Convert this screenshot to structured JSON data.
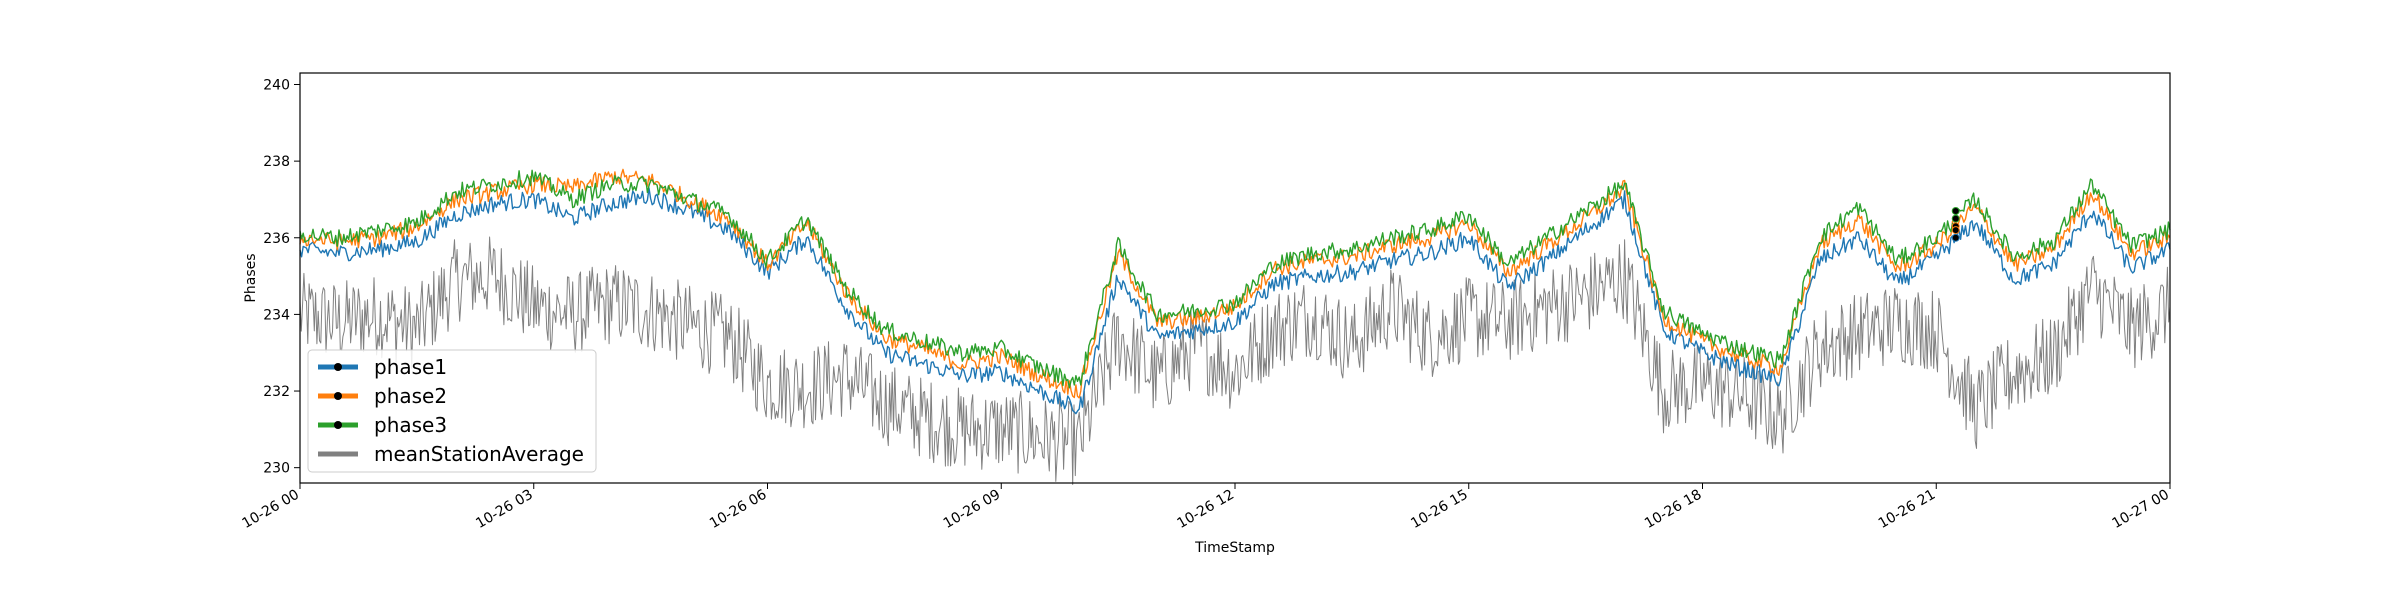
{
  "chart_data": {
    "type": "line",
    "title": "",
    "xlabel": "TimeStamp",
    "ylabel": "Phases",
    "x_ticks": [
      {
        "x": "2023-10-26T00:00",
        "label": "10-26 00"
      },
      {
        "x": "2023-10-26T03:00",
        "label": "10-26 03"
      },
      {
        "x": "2023-10-26T06:00",
        "label": "10-26 06"
      },
      {
        "x": "2023-10-26T09:00",
        "label": "10-26 09"
      },
      {
        "x": "2023-10-26T12:00",
        "label": "10-26 12"
      },
      {
        "x": "2023-10-26T15:00",
        "label": "10-26 15"
      },
      {
        "x": "2023-10-26T18:00",
        "label": "10-26 18"
      },
      {
        "x": "2023-10-26T21:00",
        "label": "10-26 21"
      },
      {
        "x": "2023-10-27T00:00",
        "label": "10-27 00"
      }
    ],
    "xlim": [
      "2023-10-26T00:00",
      "2023-10-27T00:00"
    ],
    "y_ticks": [
      230,
      232,
      234,
      236,
      238,
      240
    ],
    "ylim": [
      229.6,
      240.3
    ],
    "grid": false,
    "legend_position": "lower-left",
    "x": [
      "2023-10-26T00:00",
      "2023-10-26T00:30",
      "2023-10-26T01:00",
      "2023-10-26T01:30",
      "2023-10-26T02:00",
      "2023-10-26T02:30",
      "2023-10-26T03:00",
      "2023-10-26T03:30",
      "2023-10-26T04:00",
      "2023-10-26T04:30",
      "2023-10-26T05:00",
      "2023-10-26T05:30",
      "2023-10-26T06:00",
      "2023-10-26T06:30",
      "2023-10-26T07:00",
      "2023-10-26T07:30",
      "2023-10-26T08:00",
      "2023-10-26T08:30",
      "2023-10-26T09:00",
      "2023-10-26T09:30",
      "2023-10-26T10:00",
      "2023-10-26T10:30",
      "2023-10-26T11:00",
      "2023-10-26T11:30",
      "2023-10-26T12:00",
      "2023-10-26T12:30",
      "2023-10-26T13:00",
      "2023-10-26T13:30",
      "2023-10-26T14:00",
      "2023-10-26T14:30",
      "2023-10-26T15:00",
      "2023-10-26T15:30",
      "2023-10-26T16:00",
      "2023-10-26T16:30",
      "2023-10-26T17:00",
      "2023-10-26T17:30",
      "2023-10-26T18:00",
      "2023-10-26T18:30",
      "2023-10-26T19:00",
      "2023-10-26T19:30",
      "2023-10-26T20:00",
      "2023-10-26T20:30",
      "2023-10-26T21:00",
      "2023-10-26T21:30",
      "2023-10-26T22:00",
      "2023-10-26T22:30",
      "2023-10-26T23:00",
      "2023-10-26T23:30",
      "2023-10-27T00:00"
    ],
    "series": [
      {
        "name": "phase1",
        "color": "#1f77b4",
        "marker": "dot",
        "values": [
          235.7,
          235.6,
          235.7,
          235.9,
          236.6,
          236.9,
          237.0,
          236.5,
          236.9,
          237.1,
          236.7,
          236.2,
          235.1,
          236.0,
          234.2,
          233.0,
          232.7,
          232.4,
          232.5,
          232.0,
          231.5,
          235.0,
          233.4,
          233.6,
          233.8,
          234.8,
          235.0,
          235.1,
          235.4,
          235.6,
          236.0,
          234.7,
          235.4,
          236.2,
          237.0,
          233.6,
          233.0,
          232.6,
          232.3,
          235.4,
          236.0,
          234.8,
          235.5,
          236.4,
          234.9,
          235.3,
          236.7,
          235.2,
          235.7
        ]
      },
      {
        "name": "phase2",
        "color": "#ff7f0e",
        "marker": "dot",
        "values": [
          236.0,
          235.9,
          236.0,
          236.3,
          237.0,
          237.2,
          237.4,
          237.3,
          237.6,
          237.5,
          237.0,
          236.5,
          235.3,
          236.4,
          234.6,
          233.4,
          233.1,
          232.7,
          232.9,
          232.4,
          232.0,
          235.6,
          233.8,
          233.9,
          234.2,
          235.2,
          235.4,
          235.5,
          235.8,
          236.0,
          236.4,
          235.1,
          235.8,
          236.5,
          237.3,
          233.9,
          233.3,
          232.9,
          232.6,
          235.8,
          236.5,
          235.2,
          235.8,
          236.8,
          235.3,
          235.7,
          237.2,
          235.6,
          236.0
        ]
      },
      {
        "name": "phase3",
        "color": "#2ca02c",
        "marker": "dot",
        "values": [
          236.1,
          236.0,
          236.2,
          236.4,
          237.2,
          237.4,
          237.6,
          237.0,
          237.4,
          237.4,
          237.0,
          236.6,
          235.4,
          236.5,
          234.7,
          233.6,
          233.3,
          233.0,
          233.1,
          232.6,
          232.2,
          235.8,
          234.0,
          234.1,
          234.3,
          235.3,
          235.6,
          235.7,
          236.0,
          236.2,
          236.6,
          235.3,
          236.0,
          236.7,
          237.4,
          234.1,
          233.5,
          233.1,
          232.8,
          236.0,
          236.8,
          235.4,
          236.0,
          237.0,
          235.5,
          235.9,
          237.4,
          235.8,
          236.2
        ]
      },
      {
        "name": "meanStationAverage",
        "color": "#808080",
        "marker": "none",
        "values": [
          234.0,
          233.8,
          234.0,
          233.6,
          234.9,
          235.0,
          234.2,
          234.0,
          234.3,
          234.1,
          233.7,
          233.4,
          232.2,
          232.1,
          232.4,
          231.7,
          231.3,
          231.0,
          231.0,
          230.8,
          230.6,
          233.4,
          232.3,
          233.2,
          232.5,
          233.6,
          234.0,
          233.2,
          234.2,
          233.4,
          233.9,
          233.8,
          234.2,
          234.5,
          235.0,
          232.0,
          232.2,
          231.9,
          231.3,
          233.1,
          233.5,
          233.8,
          233.6,
          231.5,
          232.5,
          232.9,
          234.7,
          233.6,
          234.2
        ]
      }
    ],
    "annotated_points": [
      {
        "series": "phase3",
        "x": "2023-10-26T21:15",
        "y": 236.7
      },
      {
        "series": "phase3",
        "x": "2023-10-26T21:15",
        "y": 236.5
      },
      {
        "series": "phase2",
        "x": "2023-10-26T21:15",
        "y": 236.3
      },
      {
        "series": "phase2",
        "x": "2023-10-26T21:15",
        "y": 236.2
      },
      {
        "series": "phase1",
        "x": "2023-10-26T21:15",
        "y": 236.0
      }
    ]
  }
}
